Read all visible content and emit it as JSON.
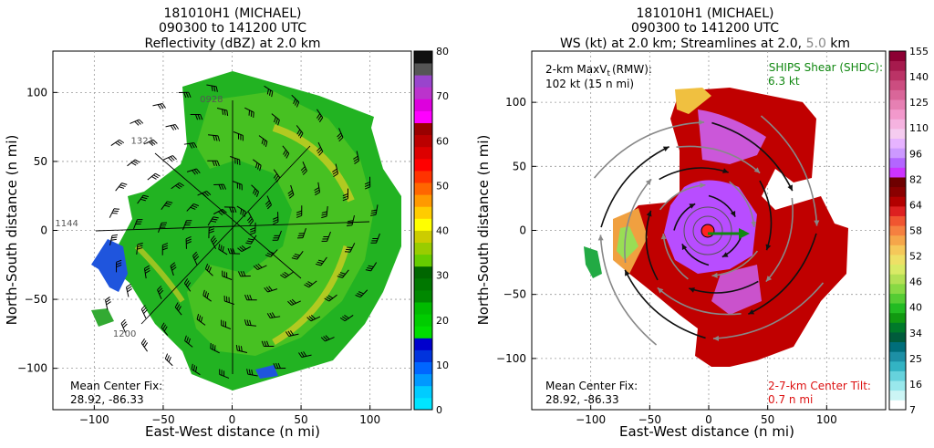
{
  "chart_data": [
    {
      "type": "heatmap",
      "title_lines": [
        "181010H1 (MICHAEL)",
        "090300 to 141200 UTC",
        "Reflectivity (dBZ) at 2.0 km"
      ],
      "xlabel": "East-West distance (n mi)",
      "ylabel": "North-South distance (n mi)",
      "xlim": [
        -130,
        130
      ],
      "ylim": [
        -130,
        130
      ],
      "xticks": [
        -100,
        -50,
        0,
        50,
        100
      ],
      "yticks": [
        -100,
        -50,
        0,
        50,
        100
      ],
      "grid": true,
      "colorbar": {
        "ticks": [
          0,
          10,
          20,
          30,
          40,
          50,
          60,
          70,
          80
        ],
        "colors": [
          "#00e5ff",
          "#00ccff",
          "#0099ff",
          "#0066ff",
          "#0033dd",
          "#0000cc",
          "#00dd00",
          "#00cc00",
          "#00bb00",
          "#008800",
          "#007700",
          "#006600",
          "#66cc00",
          "#99cc00",
          "#cccc00",
          "#ffff00",
          "#ffcc00",
          "#ff9900",
          "#ff6600",
          "#ff3300",
          "#ff0000",
          "#dd0000",
          "#bb0000",
          "#990000",
          "#ff00ff",
          "#dd00dd",
          "#bb33cc",
          "#9944cc",
          "#555555",
          "#111111"
        ]
      },
      "radial_labels": [
        {
          "text": "0928",
          "x": -15,
          "y": 93
        },
        {
          "text": "1321",
          "x": -65,
          "y": 63
        },
        {
          "text": "1144",
          "x": -120,
          "y": 3
        },
        {
          "text": "1200",
          "x": -78,
          "y": -77
        }
      ],
      "annotation_lines": [
        "Mean Center Fix:",
        "28.92, -86.33"
      ]
    },
    {
      "type": "heatmap",
      "title_lines": [
        "181010H1 (MICHAEL)",
        "090300 to 141200 UTC"
      ],
      "title_line3_prefix": "WS (kt) at 2.0 km; Streamlines at 2.0, ",
      "title_line3_gray": "5.0",
      "title_line3_suffix": " km",
      "xlabel": "East-West distance (n mi)",
      "ylabel": "North-South distance (n mi)",
      "xlim": [
        -150,
        150
      ],
      "ylim": [
        -140,
        140
      ],
      "xticks": [
        -100,
        -50,
        0,
        50,
        100
      ],
      "yticks": [
        -100,
        -50,
        0,
        50,
        100
      ],
      "grid": true,
      "colorbar": {
        "ticks": [
          7,
          16,
          25,
          34,
          40,
          46,
          52,
          58,
          64,
          82,
          96,
          110,
          125,
          140,
          155
        ],
        "colors": [
          "#ffffff",
          "#ccf5f5",
          "#99e8ec",
          "#66d2dc",
          "#33b3c3",
          "#1d8fa5",
          "#006e7a",
          "#005c3c",
          "#007a2a",
          "#119911",
          "#22bb22",
          "#55cc33",
          "#88d944",
          "#b3e055",
          "#d9ea66",
          "#eee066",
          "#f5c85a",
          "#f5a64a",
          "#f58040",
          "#f05530",
          "#dd2020",
          "#b30000",
          "#8a0000",
          "#6e0000",
          "#cc33ff",
          "#b366ff",
          "#cc99ff",
          "#e6b3ff",
          "#f5ccf0",
          "#f5b3e0",
          "#f299cc",
          "#e680b3",
          "#d96699",
          "#cc4d80",
          "#bb3366",
          "#a61a4d",
          "#8c0033"
        ]
      },
      "annotation_max_lines": [
        "2-km Max",
        "(RMW):",
        "102 kt (15 n mi)"
      ],
      "annotation_max_symbol": "V",
      "annotation_max_sub": "t",
      "annotation_shear_lines": [
        "SHIPS Shear (SHDC):",
        "6.3 kt"
      ],
      "annotation_center_lines": [
        "Mean Center Fix:",
        "28.92, -86.33"
      ],
      "annotation_tilt_lines": [
        "2-7-km Center Tilt:",
        "0.7 n mi"
      ],
      "colors": {
        "shear": "#118811",
        "tilt": "#dd1111"
      }
    }
  ]
}
